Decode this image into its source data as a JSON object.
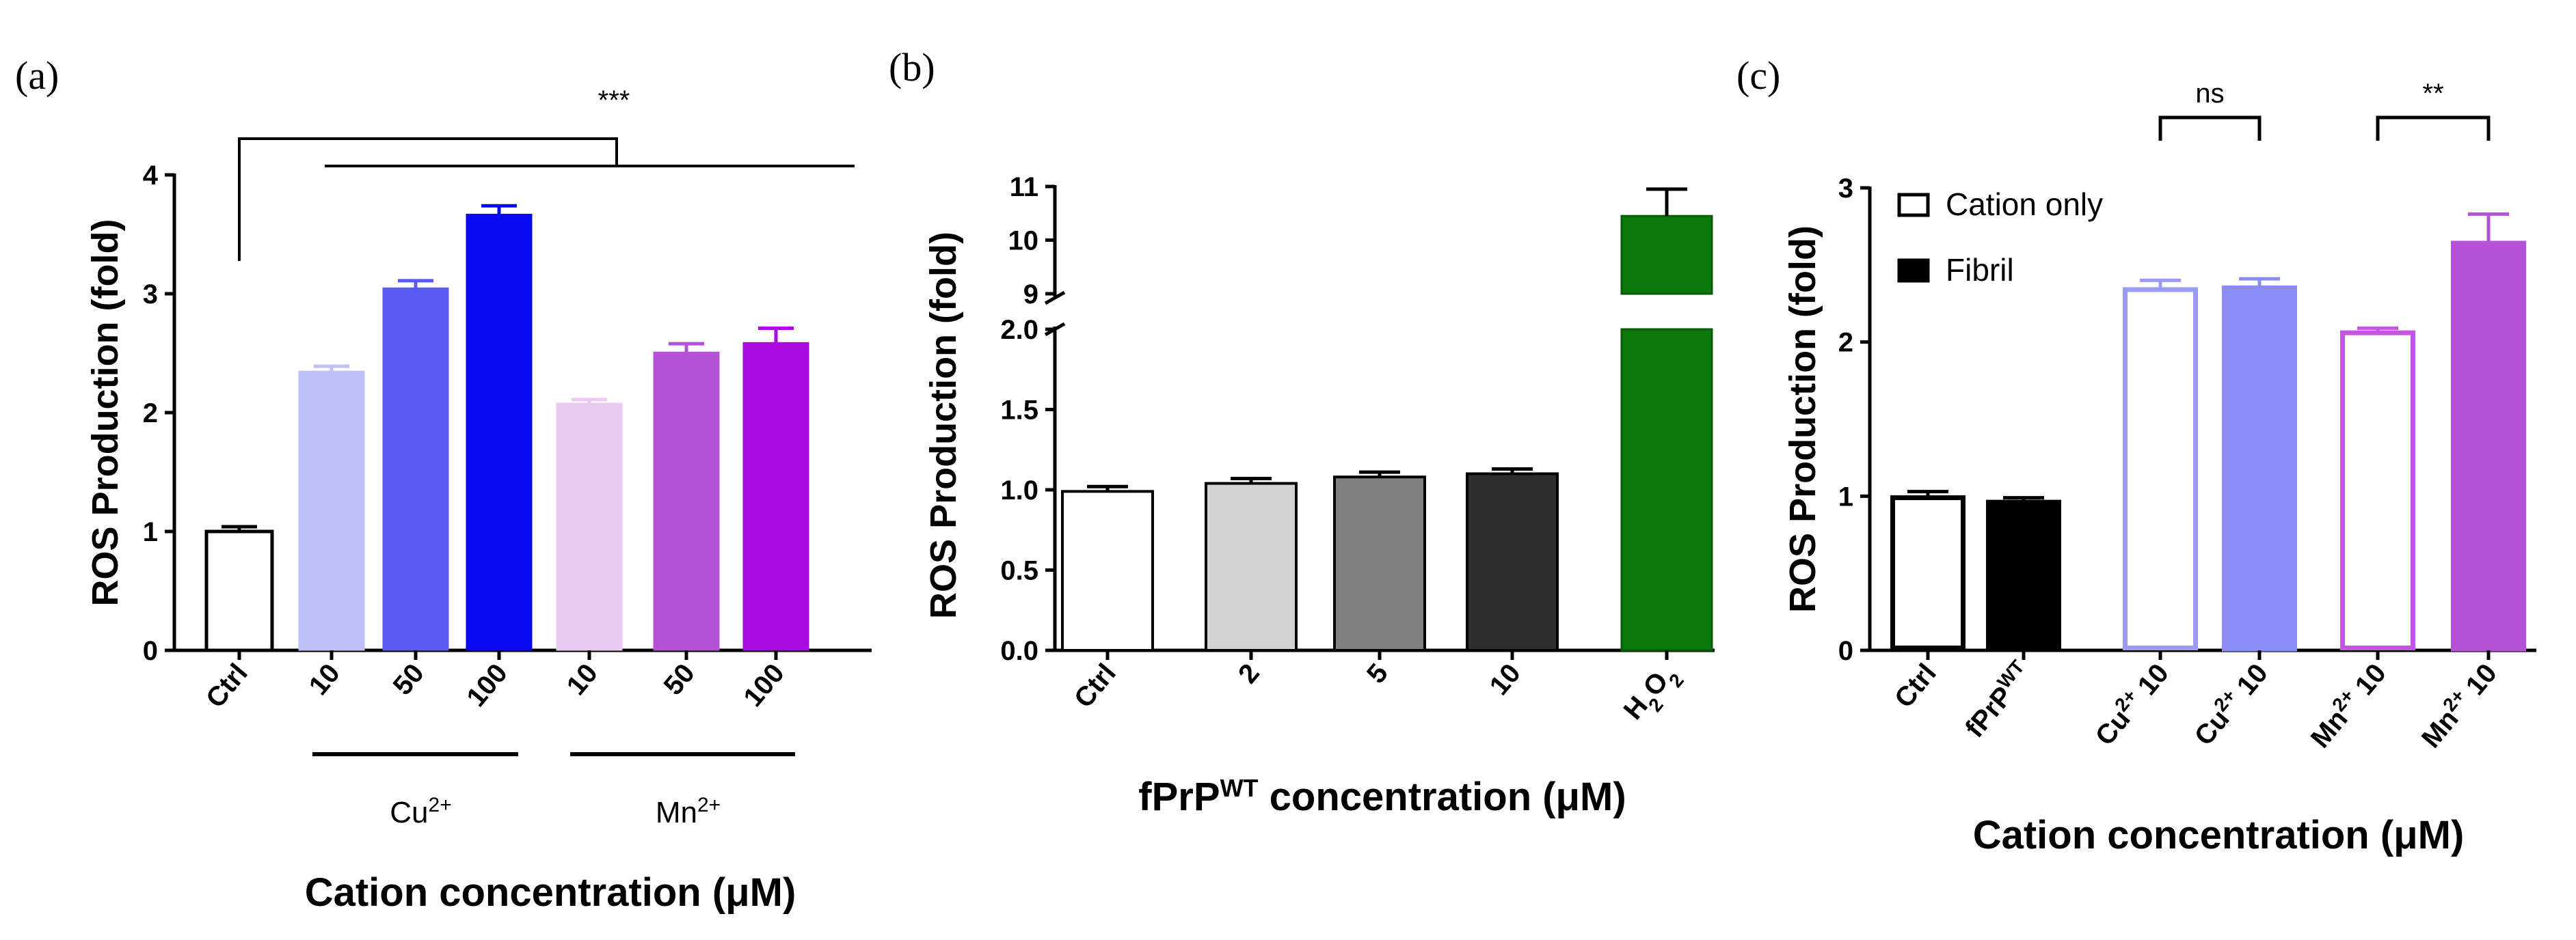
{
  "panels": {
    "a": {
      "label": "(a)"
    },
    "b": {
      "label": "(b)"
    },
    "c": {
      "label": "(c)"
    }
  },
  "chart_data": [
    {
      "id": "a",
      "type": "bar",
      "title": "",
      "ylabel": "ROS Production (fold)",
      "xlabel": "Cation concentration (μM)",
      "ylim": [
        0,
        4
      ],
      "yticks": [
        "0",
        "1",
        "2",
        "3",
        "4"
      ],
      "categories": [
        "Ctrl",
        "10",
        "50",
        "100",
        "10",
        "50",
        "100"
      ],
      "values": [
        1.0,
        2.35,
        3.05,
        3.67,
        2.08,
        2.51,
        2.59
      ],
      "errors": [
        0.04,
        0.04,
        0.06,
        0.07,
        0.03,
        0.07,
        0.12
      ],
      "colors": [
        "#ffffff",
        "#c0c0f8",
        "#5a5af5",
        "#0a0af0",
        "#eac9f2",
        "#b352d6",
        "#a80ae0"
      ],
      "groups": [
        {
          "label": "Cu",
          "superscript": "2+",
          "from": 1,
          "to": 3
        },
        {
          "label": "Mn",
          "superscript": "2+",
          "from": 4,
          "to": 6
        }
      ],
      "significance": "***"
    },
    {
      "id": "b",
      "type": "bar",
      "title": "",
      "ylabel": "ROS Production (fold)",
      "xlabel": "fPrP",
      "xlabel_sup": "WT",
      "xlabel_tail": " concentration (μM)",
      "ylim_lower": [
        0,
        2.0
      ],
      "ylim_upper": [
        9,
        11
      ],
      "yticks_lower": [
        "0.0",
        "0.5",
        "1.0",
        "1.5",
        "2.0"
      ],
      "yticks_upper": [
        "9",
        "10",
        "11"
      ],
      "categories": [
        "Ctrl",
        "2",
        "5",
        "10",
        "H2O2"
      ],
      "category_h2o2": {
        "base": "H",
        "sub1": "2",
        "mid": "O",
        "sub2": "2"
      },
      "values": [
        0.99,
        1.04,
        1.08,
        1.1,
        10.45
      ],
      "errors": [
        0.03,
        0.03,
        0.03,
        0.03,
        0.5
      ],
      "colors": [
        "#ffffff",
        "#d3d3d3",
        "#808080",
        "#2e2e2e",
        "#0a780a"
      ]
    },
    {
      "id": "c",
      "type": "bar",
      "title": "",
      "ylabel": "ROS Production (fold)",
      "xlabel": "Cation concentration (μM)",
      "ylim": [
        0,
        3
      ],
      "yticks": [
        "0",
        "1",
        "2",
        "3"
      ],
      "categories": [
        "Ctrl",
        "fPrP",
        "Cu",
        "Cu",
        "Mn",
        "Mn"
      ],
      "category_parts": [
        {
          "base": "Ctrl",
          "sup": "",
          "tail": ""
        },
        {
          "base": "fPrP",
          "sup": "WT",
          "tail": ""
        },
        {
          "base": "Cu",
          "sup": "2+",
          "tail": " 10"
        },
        {
          "base": "Cu",
          "sup": "2+",
          "tail": " 10"
        },
        {
          "base": "Mn",
          "sup": "2+",
          "tail": " 10"
        },
        {
          "base": "Mn",
          "sup": "2+",
          "tail": " 10"
        }
      ],
      "values": [
        0.99,
        0.97,
        2.34,
        2.36,
        2.06,
        2.65
      ],
      "errors": [
        0.04,
        0.02,
        0.06,
        0.05,
        0.03,
        0.18
      ],
      "fills": [
        "#ffffff",
        "#000000",
        "#ffffff",
        "#8c8cf8",
        "#ffffff",
        "#b352d6"
      ],
      "strokes": [
        "#000000",
        "#000000",
        "#9b9bf8",
        "#8c8cf8",
        "#c455e0",
        "#b352d6"
      ],
      "legend": [
        {
          "label": "Cation only",
          "fill": "#ffffff"
        },
        {
          "label": "Fibril",
          "fill": "#000000"
        }
      ],
      "significance": [
        {
          "label": "ns",
          "from": 2,
          "to": 3
        },
        {
          "label": "**",
          "from": 4,
          "to": 5
        }
      ]
    }
  ]
}
